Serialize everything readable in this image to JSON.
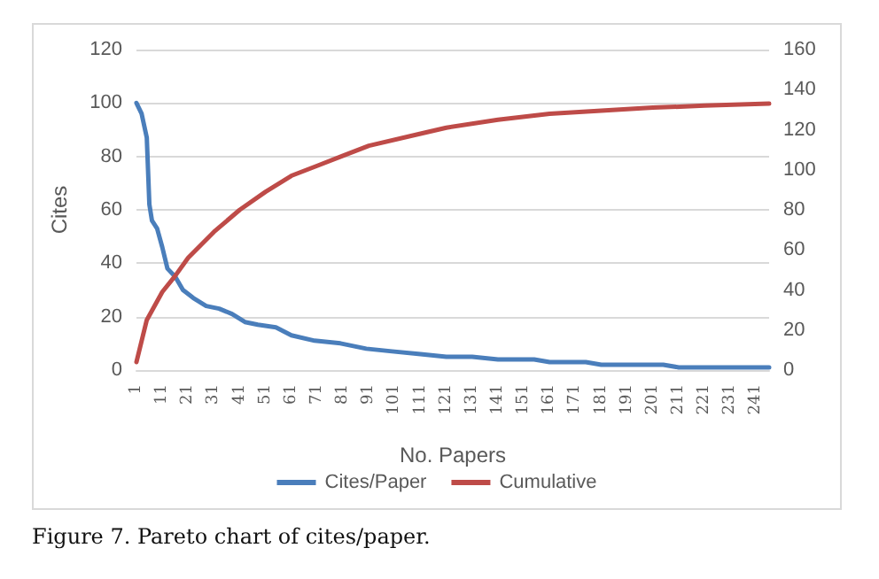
{
  "chart_data": {
    "type": "line",
    "xlabel": "No. Papers",
    "ylabel": "Cites",
    "annotations": [
      "Figure 7. Pareto chart of cites/paper."
    ],
    "xlim": [
      1,
      246
    ],
    "xticks": [
      1,
      11,
      21,
      31,
      41,
      51,
      61,
      71,
      81,
      91,
      101,
      111,
      121,
      131,
      141,
      151,
      161,
      171,
      181,
      191,
      201,
      211,
      221,
      231,
      241
    ],
    "ylim": [
      0,
      120
    ],
    "yticks": [
      0,
      20,
      40,
      60,
      80,
      100,
      120
    ],
    "y2lim": [
      0,
      160
    ],
    "y2ticks": [
      0,
      20,
      40,
      60,
      80,
      100,
      120,
      140,
      160
    ],
    "grid": "y",
    "legend": "bottom",
    "marker": "none",
    "line_style": "solid",
    "series": [
      {
        "name": "Cites/Paper",
        "color": "#4a7ebb",
        "x": [
          1,
          3,
          5,
          6,
          7,
          9,
          11,
          13,
          16,
          19,
          23,
          28,
          33,
          38,
          43,
          48,
          55,
          61,
          70,
          80,
          90,
          100,
          111,
          121,
          131,
          141,
          155,
          161,
          175,
          181,
          205,
          211,
          246
        ],
        "values": [
          100,
          96,
          87,
          62,
          56,
          53,
          46,
          38,
          35,
          30,
          27,
          24,
          23,
          21,
          18,
          17,
          16,
          13,
          11,
          10,
          8,
          7,
          6,
          5,
          5,
          4,
          4,
          3,
          3,
          2,
          2,
          1,
          1
        ]
      },
      {
        "name": "Cumulative",
        "color": "#be4b48",
        "axis": "y2",
        "x": [
          1,
          5,
          11,
          16,
          21,
          31,
          41,
          51,
          61,
          71,
          81,
          91,
          111,
          121,
          141,
          161,
          181,
          201,
          221,
          246
        ],
        "values": [
          4,
          25,
          39,
          47,
          56,
          69,
          80,
          89,
          97,
          102,
          107,
          112,
          118,
          121,
          125,
          128,
          129.5,
          131,
          132,
          133
        ]
      }
    ]
  }
}
